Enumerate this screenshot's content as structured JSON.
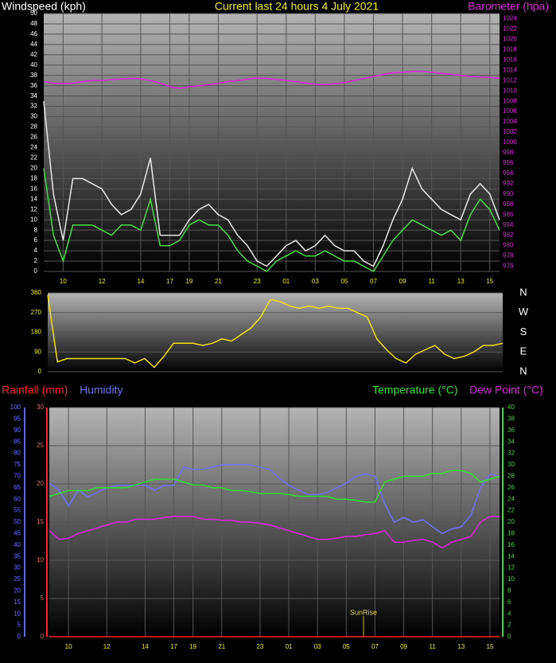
{
  "chart_data": [
    {
      "type": "line",
      "title": "Current last 24 hours 4 July 2021",
      "y_label": "Windspeed (kph)",
      "y2_label": "Barometer (hpa)",
      "categories": [
        null,
        null,
        "10",
        null,
        null,
        null,
        "12",
        null,
        null,
        null,
        "14",
        null,
        null,
        "17",
        null,
        "19",
        null,
        null,
        "21",
        null,
        null,
        null,
        "23",
        null,
        null,
        "01",
        null,
        null,
        "03",
        null,
        null,
        "05",
        null,
        null,
        "07",
        null,
        null,
        "09",
        null,
        null,
        "11",
        null,
        null,
        "13",
        null,
        null,
        "15",
        null
      ],
      "ylim": [
        0,
        50
      ],
      "yticks": [
        0,
        2,
        4,
        6,
        8,
        10,
        12,
        14,
        16,
        18,
        20,
        22,
        24,
        26,
        28,
        30,
        32,
        34,
        36,
        38,
        40,
        42,
        44,
        46,
        48,
        50
      ],
      "y2lim": [
        975,
        1025
      ],
      "y2ticks": [
        976,
        978,
        980,
        982,
        984,
        986,
        988,
        990,
        992,
        994,
        996,
        998,
        1000,
        1002,
        1004,
        1006,
        1008,
        1010,
        1012,
        1014,
        1016,
        1018,
        1020,
        1022,
        1024
      ],
      "grid": true,
      "series": [
        {
          "color": "#e8e8e8",
          "values": [
            33,
            15,
            6,
            18,
            18,
            17,
            16,
            13,
            11,
            12,
            15,
            22,
            7,
            7,
            7,
            10,
            12,
            13,
            11,
            10,
            7,
            5,
            2,
            1,
            3,
            5,
            6,
            4,
            5,
            7,
            5,
            4,
            4,
            2,
            1,
            5,
            10,
            14,
            20,
            16,
            14,
            12,
            11,
            10,
            15,
            17,
            15,
            10
          ]
        },
        {
          "color": "#44dd44",
          "values": [
            20,
            7,
            2,
            9,
            9,
            9,
            8,
            7,
            9,
            9,
            8,
            14,
            5,
            5,
            6,
            9,
            10,
            9,
            9,
            7,
            4,
            2,
            1,
            0,
            2,
            3,
            4,
            3,
            3,
            4,
            3,
            2,
            2,
            1,
            0,
            3,
            6,
            8,
            10,
            9,
            8,
            7,
            8,
            6,
            11,
            14,
            12,
            8
          ]
        },
        {
          "color": "#e020e0",
          "axis": "y2",
          "values": [
            1011.8,
            1011.5,
            1011.4,
            1011.5,
            1011.8,
            1012,
            1012,
            1012.2,
            1012.3,
            1012.4,
            1012.3,
            1012,
            1011.5,
            1010.8,
            1010.5,
            1010.8,
            1011,
            1011.2,
            1011.5,
            1011.8,
            1012,
            1012.3,
            1012.5,
            1012.4,
            1012.2,
            1012,
            1011.8,
            1011.5,
            1011.3,
            1011.2,
            1011.4,
            1011.6,
            1012,
            1012.4,
            1012.8,
            1013.2,
            1013.5,
            1013.6,
            1013.8,
            1013.8,
            1013.6,
            1013.4,
            1013.2,
            1013,
            1012.8,
            1012.7,
            1012.6,
            1012.4
          ]
        }
      ]
    },
    {
      "type": "line",
      "ylim": [
        0,
        360
      ],
      "yticks": [
        0,
        90,
        180,
        270,
        360
      ],
      "grid": true,
      "compass": [
        "N",
        "W",
        "S",
        "E",
        "N"
      ],
      "series": [
        {
          "color": "#f0e010",
          "values": [
            350,
            45,
            60,
            60,
            60,
            60,
            60,
            60,
            60,
            40,
            60,
            20,
            70,
            130,
            130,
            130,
            120,
            130,
            150,
            140,
            170,
            200,
            250,
            330,
            320,
            300,
            290,
            300,
            290,
            300,
            290,
            290,
            270,
            250,
            150,
            100,
            60,
            40,
            80,
            100,
            120,
            80,
            60,
            70,
            90,
            120,
            120,
            130
          ]
        }
      ]
    },
    {
      "type": "line",
      "categories": [
        null,
        null,
        "10",
        null,
        null,
        null,
        "12",
        null,
        null,
        null,
        "14",
        null,
        null,
        "17",
        null,
        "19",
        null,
        null,
        "21",
        null,
        null,
        null,
        "23",
        null,
        null,
        "01",
        null,
        null,
        "03",
        null,
        null,
        "05",
        null,
        null,
        "07",
        null,
        null,
        "09",
        null,
        null,
        "11",
        null,
        null,
        "13",
        null,
        null,
        "15",
        null
      ],
      "ylim": [
        0,
        30
      ],
      "yticks": [
        0,
        5,
        10,
        15,
        20,
        25,
        30
      ],
      "y3lim": [
        0,
        100
      ],
      "y3ticks": [
        0,
        5,
        10,
        15,
        20,
        25,
        30,
        35,
        40,
        45,
        50,
        55,
        60,
        65,
        70,
        75,
        80,
        85,
        90,
        95,
        100
      ],
      "y2lim": [
        0,
        40
      ],
      "y2ticks": [
        0,
        2,
        4,
        6,
        8,
        10,
        12,
        14,
        16,
        18,
        20,
        22,
        24,
        26,
        28,
        30,
        32,
        34,
        36,
        38,
        40
      ],
      "grid": true,
      "annotation": {
        "text": "SunRise",
        "x": 32.8
      },
      "series": [
        {
          "name": "Rainfall (mm)",
          "color": "#ff2020",
          "values": [
            0,
            0,
            0,
            0,
            0,
            0,
            0,
            0,
            0,
            0,
            0,
            0,
            0,
            0,
            0,
            0,
            0,
            0,
            0,
            0,
            0,
            0,
            0,
            0,
            0,
            0,
            0,
            0,
            0,
            0,
            0,
            0,
            0,
            0,
            0,
            0,
            0,
            0,
            0,
            0,
            0,
            0,
            0,
            0,
            0,
            0,
            0,
            0
          ]
        },
        {
          "name": "Humidity",
          "color": "#7070ff",
          "axis": "y3",
          "values": [
            67,
            64,
            57,
            64,
            61,
            63,
            65,
            66,
            66,
            66,
            66,
            64,
            66,
            66,
            74,
            73,
            73,
            74,
            75,
            75,
            75,
            75,
            74,
            73,
            69,
            66,
            64,
            62,
            62,
            63,
            65,
            67,
            70,
            71,
            70,
            58,
            50,
            52,
            50,
            51,
            48,
            45,
            47,
            48,
            53,
            65,
            71,
            70
          ]
        },
        {
          "name": "Temperature (°C)",
          "color": "#30e030",
          "axis": "y2",
          "values": [
            24.5,
            25,
            25.5,
            25.5,
            25.5,
            26,
            26,
            26,
            26,
            26.5,
            27,
            27.5,
            27.5,
            27.5,
            27,
            26.5,
            26.5,
            26,
            26,
            25.5,
            25.5,
            25.3,
            25,
            25,
            25,
            24.8,
            24.5,
            24.5,
            24.5,
            24.5,
            24,
            24,
            23.8,
            23.5,
            23.5,
            27,
            27.5,
            28,
            28,
            28,
            28.5,
            28.5,
            29,
            29,
            28.5,
            27,
            27.5,
            28
          ]
        },
        {
          "name": "Dew Point (°C)",
          "color": "#e020e0",
          "axis": "y2",
          "values": [
            18.5,
            17,
            17.2,
            18,
            18.5,
            19,
            19.5,
            20,
            20,
            20.5,
            20.5,
            20.5,
            20.8,
            21,
            21,
            21,
            20.5,
            20.5,
            20.3,
            20.3,
            20,
            20,
            19.8,
            19.5,
            19,
            18.5,
            18,
            17.5,
            17,
            17,
            17.2,
            17.5,
            17.5,
            17.8,
            18,
            18.5,
            16.5,
            16.5,
            16.8,
            17,
            16.5,
            15.5,
            16.5,
            17,
            17.5,
            20,
            21,
            21
          ]
        }
      ]
    }
  ]
}
